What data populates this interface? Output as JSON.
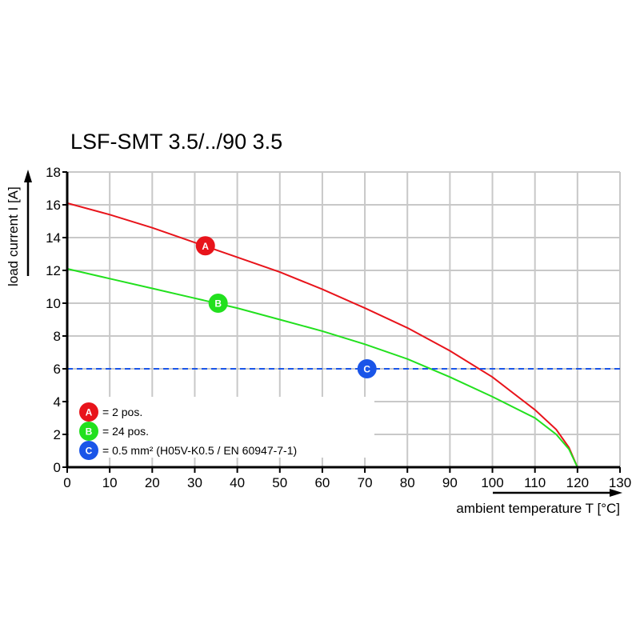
{
  "chart_data": {
    "type": "line",
    "title": "LSF-SMT 3.5/../90 3.5",
    "xlabel": "ambient temperature T [°C]",
    "ylabel": "load current I [A]",
    "xlim": [
      0,
      130
    ],
    "ylim": [
      0,
      18
    ],
    "xticks": [
      0,
      10,
      20,
      30,
      40,
      50,
      60,
      70,
      80,
      90,
      100,
      110,
      120,
      130
    ],
    "yticks": [
      0,
      2,
      4,
      6,
      8,
      10,
      12,
      14,
      16,
      18
    ],
    "grid": true,
    "series": [
      {
        "marker": "A",
        "color": "#e8141b",
        "marker_at": [
          32.5,
          13.5
        ],
        "x": [
          0,
          10,
          20,
          30,
          40,
          50,
          60,
          70,
          80,
          90,
          100,
          110,
          115,
          118,
          120
        ],
        "y": [
          16.1,
          15.4,
          14.6,
          13.7,
          12.8,
          11.9,
          10.85,
          9.7,
          8.5,
          7.1,
          5.5,
          3.5,
          2.3,
          1.2,
          0
        ]
      },
      {
        "marker": "B",
        "color": "#22e01e",
        "marker_at": [
          35.5,
          10
        ],
        "x": [
          0,
          10,
          20,
          30,
          40,
          50,
          60,
          70,
          80,
          90,
          100,
          110,
          115,
          118,
          120
        ],
        "y": [
          12.1,
          11.5,
          10.9,
          10.3,
          9.7,
          9.0,
          8.3,
          7.5,
          6.6,
          5.5,
          4.3,
          3.0,
          2.0,
          1.1,
          0
        ]
      },
      {
        "marker": "C",
        "color": "#1a55e8",
        "style": "dashed",
        "marker_at": [
          70.5,
          6
        ],
        "x": [
          0,
          130
        ],
        "y": [
          6,
          6
        ]
      }
    ],
    "legend": [
      {
        "marker": "A",
        "text": "= 2 pos."
      },
      {
        "marker": "B",
        "text": "= 24 pos."
      },
      {
        "marker": "C",
        "text": "= 0.5 mm² (H05V-K0.5 / EN 60947-7-1)"
      }
    ],
    "legend_position": "bottom-left"
  }
}
